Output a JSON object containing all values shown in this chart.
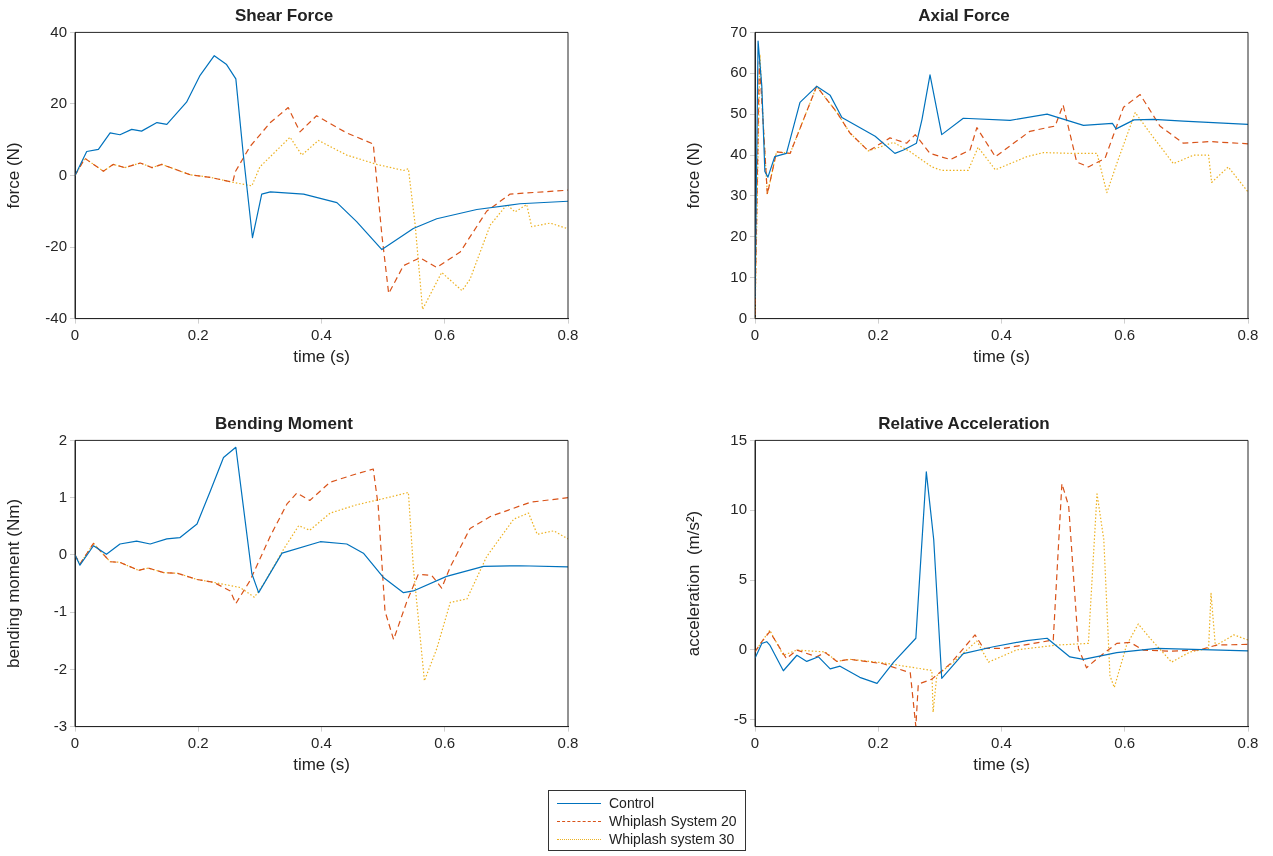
{
  "chart_data": [
    {
      "type": "line",
      "title": "Shear Force",
      "xlabel": "time (s)",
      "ylabel": "force (N)",
      "xlim": [
        0,
        0.8
      ],
      "xticks": [
        0,
        0.2,
        0.4,
        0.6,
        0.8
      ],
      "ylim": [
        -40,
        40
      ],
      "yticks": [
        -40,
        -20,
        0,
        20,
        40
      ],
      "marker": "none",
      "series": [
        {
          "color": "#0072bd",
          "line_style": "solid",
          "x": [
            0,
            0.019,
            0.038,
            0.057,
            0.073,
            0.092,
            0.108,
            0.133,
            0.149,
            0.181,
            0.203,
            0.226,
            0.246,
            0.261,
            0.273,
            0.288,
            0.303,
            0.317,
            0.371,
            0.425,
            0.457,
            0.498,
            0.549,
            0.587,
            0.652,
            0.722,
            0.8
          ],
          "values": [
            0,
            6.7,
            7.3,
            11.9,
            11.4,
            12.9,
            12.4,
            14.8,
            14.3,
            20.5,
            28,
            33.5,
            31,
            27,
            6,
            -17.4,
            -5.2,
            -4.6,
            -5.2,
            -7.6,
            -12.9,
            -20.7,
            -14.8,
            -12.1,
            -9.5,
            -7.9,
            -7.2
          ]
        },
        {
          "color": "#d95319",
          "line_style": "dashed",
          "x": [
            0,
            0.016,
            0.046,
            0.062,
            0.081,
            0.106,
            0.125,
            0.141,
            0.187,
            0.219,
            0.256,
            0.26,
            0.284,
            0.317,
            0.346,
            0.365,
            0.392,
            0.441,
            0.484,
            0.498,
            0.509,
            0.533,
            0.56,
            0.587,
            0.625,
            0.668,
            0.706,
            0.8
          ],
          "values": [
            0,
            4.8,
            1.2,
            3.1,
            2.2,
            3.5,
            2.2,
            3.1,
            0.2,
            -0.5,
            -1.9,
            1,
            8.1,
            14.8,
            19,
            12.2,
            16.7,
            11.9,
            8.8,
            -16.7,
            -33,
            -25.2,
            -23,
            -25.7,
            -21.4,
            -10,
            -5.2,
            -4.1
          ]
        },
        {
          "color": "#edb120",
          "line_style": "dotted",
          "x": [
            0,
            0.016,
            0.046,
            0.062,
            0.081,
            0.106,
            0.125,
            0.141,
            0.187,
            0.219,
            0.256,
            0.287,
            0.3,
            0.349,
            0.368,
            0.395,
            0.441,
            0.49,
            0.533,
            0.541,
            0.552,
            0.564,
            0.595,
            0.628,
            0.641,
            0.674,
            0.701,
            0.714,
            0.733,
            0.741,
            0.771,
            0.8
          ],
          "values": [
            0,
            4.8,
            1.2,
            3.1,
            2.2,
            3.5,
            2.2,
            3.1,
            0.2,
            -0.5,
            -1.9,
            -2.9,
            2.4,
            10.7,
            5.7,
            9.8,
            5.7,
            3.1,
            1.4,
            1.9,
            -13.8,
            -37.4,
            -27.1,
            -32.2,
            -29,
            -13.8,
            -8.1,
            -10.2,
            -8.1,
            -14.3,
            -13.3,
            -14.9
          ]
        }
      ]
    },
    {
      "type": "line",
      "title": "Axial Force",
      "xlabel": "time (s)",
      "ylabel": "force (N)",
      "xlim": [
        0,
        0.8
      ],
      "xticks": [
        0,
        0.2,
        0.4,
        0.6,
        0.8
      ],
      "ylim": [
        0,
        70
      ],
      "yticks": [
        0,
        10,
        20,
        30,
        40,
        50,
        60,
        70
      ],
      "marker": "none",
      "series": [
        {
          "color": "#0072bd",
          "line_style": "solid",
          "x": [
            0,
            0.005,
            0.011,
            0.016,
            0.021,
            0.032,
            0.051,
            0.073,
            0.1,
            0.122,
            0.141,
            0.195,
            0.227,
            0.241,
            0.262,
            0.271,
            0.284,
            0.303,
            0.338,
            0.414,
            0.474,
            0.533,
            0.58,
            0.586,
            0.615,
            0.647,
            0.695,
            0.8
          ],
          "values": [
            5,
            67.9,
            57,
            36,
            34.6,
            39.6,
            40.4,
            52.9,
            56.8,
            54.6,
            49.2,
            44.6,
            40.4,
            41.25,
            42.9,
            48.75,
            59.6,
            45,
            49,
            48.5,
            50,
            47.25,
            47.75,
            46.4,
            48.6,
            48.75,
            48.3,
            47.5
          ]
        },
        {
          "color": "#d95319",
          "line_style": "dashed",
          "x": [
            0,
            0.007,
            0.014,
            0.02,
            0.035,
            0.057,
            0.1,
            0.133,
            0.154,
            0.184,
            0.219,
            0.246,
            0.26,
            0.284,
            0.317,
            0.349,
            0.36,
            0.39,
            0.446,
            0.487,
            0.5,
            0.522,
            0.541,
            0.568,
            0.598,
            0.625,
            0.657,
            0.695,
            0.738,
            0.8
          ],
          "values": [
            1,
            62.9,
            46,
            30.4,
            40.8,
            40.4,
            56.8,
            50.4,
            45.4,
            41,
            44.2,
            42.9,
            45,
            40.4,
            38.9,
            41.25,
            46.7,
            39.6,
            45.8,
            47.1,
            52.25,
            38.3,
            37.1,
            39.2,
            51.7,
            54.8,
            47.1,
            42.9,
            43.3,
            42.75
          ]
        },
        {
          "color": "#edb120",
          "line_style": "dotted",
          "x": [
            0,
            0.008,
            0.014,
            0.02,
            0.035,
            0.057,
            0.1,
            0.133,
            0.154,
            0.184,
            0.225,
            0.252,
            0.287,
            0.303,
            0.346,
            0.362,
            0.39,
            0.441,
            0.468,
            0.517,
            0.555,
            0.571,
            0.587,
            0.617,
            0.641,
            0.679,
            0.712,
            0.736,
            0.741,
            0.768,
            0.8
          ],
          "values": [
            0,
            64.6,
            46,
            30.4,
            40.8,
            40.4,
            56.8,
            50.4,
            45.4,
            41,
            43.1,
            40.8,
            37.1,
            36.25,
            36.25,
            41.9,
            36.4,
            39.6,
            40.6,
            40.4,
            40.4,
            30.8,
            37.9,
            50.4,
            45.4,
            37.9,
            40,
            40,
            33.3,
            37.1,
            31
          ]
        }
      ]
    },
    {
      "type": "line",
      "title": "Bending Moment",
      "xlabel": "time (s)",
      "ylabel": "bending moment (Nm)",
      "xlim": [
        0,
        0.8
      ],
      "xticks": [
        0,
        0.2,
        0.4,
        0.6,
        0.8
      ],
      "ylim": [
        -3,
        2
      ],
      "yticks": [
        -3,
        -2,
        -1,
        0,
        1,
        2
      ],
      "marker": "none",
      "series": [
        {
          "color": "#0072bd",
          "line_style": "solid",
          "x": [
            0,
            0.008,
            0.03,
            0.051,
            0.073,
            0.1,
            0.122,
            0.149,
            0.17,
            0.198,
            0.219,
            0.241,
            0.261,
            0.273,
            0.287,
            0.298,
            0.336,
            0.398,
            0.441,
            0.468,
            0.5,
            0.533,
            0.549,
            0.603,
            0.663,
            0.722,
            0.8
          ],
          "values": [
            0,
            -0.18,
            0.16,
            0.01,
            0.19,
            0.24,
            0.19,
            0.28,
            0.3,
            0.54,
            1.1,
            1.7,
            1.88,
            0.86,
            -0.33,
            -0.66,
            0.03,
            0.23,
            0.19,
            0.03,
            -0.39,
            -0.66,
            -0.63,
            -0.375,
            -0.2,
            -0.19,
            -0.21
          ]
        },
        {
          "color": "#d95319",
          "line_style": "dashed",
          "x": [
            0,
            0.008,
            0.03,
            0.057,
            0.073,
            0.103,
            0.119,
            0.144,
            0.166,
            0.198,
            0.225,
            0.252,
            0.261,
            0.284,
            0.317,
            0.344,
            0.36,
            0.381,
            0.414,
            0.452,
            0.484,
            0.492,
            0.503,
            0.517,
            0.538,
            0.557,
            0.579,
            0.595,
            0.609,
            0.641,
            0.674,
            0.739,
            0.8
          ],
          "values": [
            0,
            -0.16,
            0.2,
            -0.12,
            -0.13,
            -0.27,
            -0.23,
            -0.31,
            -0.32,
            -0.43,
            -0.48,
            -0.63,
            -0.85,
            -0.45,
            0.33,
            0.89,
            1.08,
            0.95,
            1.27,
            1.4,
            1.5,
            0.86,
            -0.98,
            -1.48,
            -0.83,
            -0.34,
            -0.36,
            -0.58,
            -0.21,
            0.46,
            0.67,
            0.92,
            1
          ]
        },
        {
          "color": "#edb120",
          "line_style": "dotted",
          "x": [
            0,
            0.008,
            0.03,
            0.057,
            0.073,
            0.103,
            0.119,
            0.144,
            0.166,
            0.198,
            0.225,
            0.268,
            0.291,
            0.306,
            0.338,
            0.363,
            0.381,
            0.414,
            0.457,
            0.511,
            0.541,
            0.549,
            0.567,
            0.587,
            0.609,
            0.636,
            0.668,
            0.712,
            0.736,
            0.75,
            0.777,
            0.8
          ],
          "values": [
            0,
            -0.16,
            0.2,
            -0.12,
            -0.13,
            -0.27,
            -0.23,
            -0.31,
            -0.32,
            -0.43,
            -0.48,
            -0.57,
            -0.74,
            -0.51,
            0.09,
            0.51,
            0.43,
            0.73,
            0.875,
            1.01,
            1.09,
            -0.21,
            -2.2,
            -1.64,
            -0.83,
            -0.77,
            -0.03,
            0.625,
            0.73,
            0.36,
            0.42,
            0.28
          ]
        }
      ]
    },
    {
      "type": "line",
      "title": "Relative Acceleration",
      "xlabel": "time (s)",
      "ylabel": "acceleration  (m/s²)",
      "xlim": [
        0,
        0.8
      ],
      "xticks": [
        0,
        0.2,
        0.4,
        0.6,
        0.8
      ],
      "ylim": [
        -5.5,
        15
      ],
      "yticks": [
        -5,
        0,
        5,
        10,
        15
      ],
      "marker": "none",
      "legend": "bottom",
      "series": [
        {
          "name": "Control",
          "color": "#0072bd",
          "line_style": "solid",
          "x": [
            0,
            0.011,
            0.019,
            0.024,
            0.046,
            0.068,
            0.084,
            0.103,
            0.122,
            0.138,
            0.17,
            0.198,
            0.225,
            0.261,
            0.278,
            0.29,
            0.303,
            0.338,
            0.387,
            0.441,
            0.474,
            0.511,
            0.533,
            0.587,
            0.652,
            0.8
          ],
          "values": [
            -0.6,
            0.46,
            0.58,
            0.34,
            -1.5,
            -0.39,
            -0.83,
            -0.5,
            -1.36,
            -1.17,
            -1.97,
            -2.4,
            -0.88,
            0.83,
            12.75,
            7.9,
            -2.04,
            -0.27,
            0.22,
            0.66,
            0.83,
            -0.51,
            -0.68,
            -0.2,
            0.1,
            -0.07
          ]
        },
        {
          "name": "Whiplash System 20",
          "color": "#d95319",
          "line_style": "dashed",
          "x": [
            0,
            0.011,
            0.024,
            0.051,
            0.068,
            0.1,
            0.114,
            0.133,
            0.154,
            0.208,
            0.252,
            0.261,
            0.265,
            0.287,
            0.317,
            0.357,
            0.371,
            0.403,
            0.452,
            0.484,
            0.498,
            0.509,
            0.525,
            0.538,
            0.555,
            0.587,
            0.609,
            0.63,
            0.674,
            0.722,
            0.749,
            0.8
          ],
          "values": [
            -0.15,
            0.58,
            1.3,
            -0.63,
            -0.02,
            -0.5,
            -0.2,
            -0.83,
            -0.68,
            -1,
            -1.65,
            -5.5,
            -2.46,
            -2.1,
            -1,
            1.07,
            0.1,
            0.1,
            0.46,
            0.7,
            11.9,
            10.3,
            0.1,
            -1.29,
            -0.63,
            0.46,
            0.53,
            -0.02,
            -0.1,
            0,
            0.34,
            0.39
          ]
        },
        {
          "name": "Whiplash system 30",
          "color": "#edb120",
          "line_style": "dotted",
          "x": [
            0,
            0.011,
            0.024,
            0.046,
            0.068,
            0.114,
            0.133,
            0.154,
            0.208,
            0.287,
            0.289,
            0.295,
            0.322,
            0.36,
            0.379,
            0.425,
            0.49,
            0.541,
            0.555,
            0.566,
            0.576,
            0.583,
            0.603,
            0.622,
            0.641,
            0.676,
            0.706,
            0.736,
            0.74,
            0.747,
            0.777,
            0.8
          ],
          "values": [
            -0.15,
            0.58,
            1.4,
            -0.39,
            -0.02,
            -0.15,
            -0.83,
            -0.68,
            -0.93,
            -1.48,
            -4.47,
            -1.85,
            -0.88,
            0.63,
            -0.88,
            0,
            0.34,
            0.46,
            11.17,
            7.9,
            -1.85,
            -2.7,
            0.34,
            1.85,
            0.83,
            -0.88,
            -0.15,
            0.1,
            4.04,
            0.29,
            1.07,
            0.7
          ]
        }
      ]
    }
  ]
}
